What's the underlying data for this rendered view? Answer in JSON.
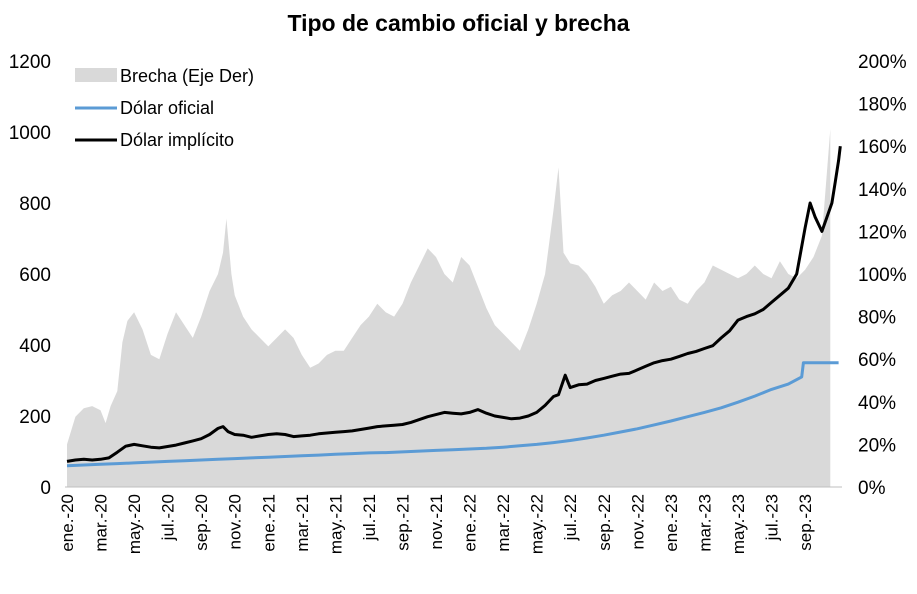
{
  "chart_data": {
    "type": "line",
    "title": "Tipo de cambio oficial y brecha",
    "ylim": [
      0,
      1200
    ],
    "y2lim": [
      0,
      200
    ],
    "yticks": [
      "0",
      "200",
      "400",
      "600",
      "800",
      "1000",
      "1200"
    ],
    "y2ticks": [
      "0%",
      "20%",
      "40%",
      "60%",
      "80%",
      "100%",
      "120%",
      "140%",
      "160%",
      "180%",
      "200%"
    ],
    "xtick_labels": [
      "ene.-20",
      "mar.-20",
      "may.-20",
      "jul.-20",
      "sep.-20",
      "nov.-20",
      "ene.-21",
      "mar.-21",
      "may.-21",
      "jul.-21",
      "sep.-21",
      "nov.-21",
      "ene.-22",
      "mar.-22",
      "may.-22",
      "jul.-22",
      "sep.-22",
      "nov.-22",
      "ene.-23",
      "mar.-23",
      "may.-23",
      "jul.-23",
      "sep.-23"
    ],
    "x_unit": "months since ene.-20",
    "legend": [
      "Brecha (Eje Der)",
      "Dólar oficial",
      "Dólar implícito"
    ],
    "colors": {
      "brecha": "#d9d9d9",
      "oficial": "#5b9bd5",
      "implicito": "#000000"
    },
    "series": [
      {
        "name": "Brecha (Eje Der)",
        "axis": "right",
        "points": [
          [
            0,
            20
          ],
          [
            0.5,
            33
          ],
          [
            1,
            37
          ],
          [
            1.5,
            38
          ],
          [
            2,
            36
          ],
          [
            2.3,
            30
          ],
          [
            2.6,
            38
          ],
          [
            3,
            45
          ],
          [
            3.3,
            68
          ],
          [
            3.6,
            78
          ],
          [
            4,
            82
          ],
          [
            4.5,
            74
          ],
          [
            5,
            62
          ],
          [
            5.5,
            60
          ],
          [
            6,
            72
          ],
          [
            6.5,
            82
          ],
          [
            7,
            76
          ],
          [
            7.5,
            70
          ],
          [
            8,
            80
          ],
          [
            8.5,
            92
          ],
          [
            9,
            100
          ],
          [
            9.3,
            110
          ],
          [
            9.5,
            126
          ],
          [
            9.8,
            100
          ],
          [
            10,
            90
          ],
          [
            10.5,
            80
          ],
          [
            11,
            74
          ],
          [
            11.5,
            70
          ],
          [
            12,
            66
          ],
          [
            12.5,
            70
          ],
          [
            13,
            74
          ],
          [
            13.5,
            70
          ],
          [
            14,
            62
          ],
          [
            14.5,
            56
          ],
          [
            15,
            58
          ],
          [
            15.5,
            62
          ],
          [
            16,
            64
          ],
          [
            16.5,
            64
          ],
          [
            17,
            70
          ],
          [
            17.5,
            76
          ],
          [
            18,
            80
          ],
          [
            18.5,
            86
          ],
          [
            19,
            82
          ],
          [
            19.5,
            80
          ],
          [
            20,
            86
          ],
          [
            20.5,
            96
          ],
          [
            21,
            104
          ],
          [
            21.5,
            112
          ],
          [
            22,
            108
          ],
          [
            22.5,
            100
          ],
          [
            23,
            96
          ],
          [
            23.5,
            108
          ],
          [
            24,
            104
          ],
          [
            24.5,
            94
          ],
          [
            25,
            84
          ],
          [
            25.5,
            76
          ],
          [
            26,
            72
          ],
          [
            26.5,
            68
          ],
          [
            27,
            64
          ],
          [
            27.5,
            74
          ],
          [
            28,
            86
          ],
          [
            28.5,
            100
          ],
          [
            29,
            130
          ],
          [
            29.3,
            150
          ],
          [
            29.6,
            110
          ],
          [
            30,
            105
          ],
          [
            30.5,
            104
          ],
          [
            31,
            100
          ],
          [
            31.5,
            94
          ],
          [
            32,
            86
          ],
          [
            32.5,
            90
          ],
          [
            33,
            92
          ],
          [
            33.5,
            96
          ],
          [
            34,
            92
          ],
          [
            34.5,
            88
          ],
          [
            35,
            96
          ],
          [
            35.5,
            92
          ],
          [
            36,
            94
          ],
          [
            36.5,
            88
          ],
          [
            37,
            86
          ],
          [
            37.5,
            92
          ],
          [
            38,
            96
          ],
          [
            38.5,
            104
          ],
          [
            39,
            102
          ],
          [
            39.5,
            100
          ],
          [
            40,
            98
          ],
          [
            40.5,
            100
          ],
          [
            41,
            104
          ],
          [
            41.5,
            100
          ],
          [
            42,
            98
          ],
          [
            42.5,
            106
          ],
          [
            43,
            100
          ],
          [
            43.5,
            98
          ],
          [
            44,
            102
          ],
          [
            44.5,
            108
          ],
          [
            45,
            118
          ],
          [
            45.5,
            168
          ]
        ]
      },
      {
        "name": "Dólar oficial",
        "axis": "left",
        "points": [
          [
            0,
            60
          ],
          [
            1,
            62
          ],
          [
            2,
            64
          ],
          [
            3,
            66
          ],
          [
            4,
            68
          ],
          [
            5,
            70
          ],
          [
            6,
            72
          ],
          [
            7,
            74
          ],
          [
            8,
            76
          ],
          [
            9,
            78
          ],
          [
            10,
            80
          ],
          [
            11,
            82
          ],
          [
            12,
            84
          ],
          [
            13,
            86
          ],
          [
            14,
            88
          ],
          [
            15,
            90
          ],
          [
            16,
            92
          ],
          [
            17,
            94
          ],
          [
            18,
            96
          ],
          [
            19,
            97
          ],
          [
            20,
            99
          ],
          [
            21,
            101
          ],
          [
            22,
            103
          ],
          [
            23,
            105
          ],
          [
            24,
            107
          ],
          [
            25,
            109
          ],
          [
            26,
            112
          ],
          [
            27,
            116
          ],
          [
            28,
            120
          ],
          [
            29,
            125
          ],
          [
            30,
            131
          ],
          [
            31,
            138
          ],
          [
            32,
            146
          ],
          [
            33,
            155
          ],
          [
            34,
            164
          ],
          [
            35,
            175
          ],
          [
            36,
            186
          ],
          [
            37,
            198
          ],
          [
            38,
            210
          ],
          [
            39,
            223
          ],
          [
            40,
            239
          ],
          [
            41,
            256
          ],
          [
            42,
            275
          ],
          [
            43,
            290
          ],
          [
            43.8,
            310
          ],
          [
            43.9,
            350
          ],
          [
            45,
            350
          ],
          [
            46,
            350
          ]
        ]
      },
      {
        "name": "Dólar implícito",
        "axis": "left",
        "points": [
          [
            0,
            72
          ],
          [
            0.5,
            76
          ],
          [
            1,
            78
          ],
          [
            1.5,
            76
          ],
          [
            2,
            78
          ],
          [
            2.5,
            82
          ],
          [
            3,
            98
          ],
          [
            3.5,
            115
          ],
          [
            4,
            120
          ],
          [
            4.5,
            116
          ],
          [
            5,
            112
          ],
          [
            5.5,
            110
          ],
          [
            6,
            114
          ],
          [
            6.5,
            118
          ],
          [
            7,
            124
          ],
          [
            7.5,
            130
          ],
          [
            8,
            136
          ],
          [
            8.5,
            148
          ],
          [
            9,
            165
          ],
          [
            9.3,
            170
          ],
          [
            9.6,
            156
          ],
          [
            10,
            148
          ],
          [
            10.5,
            146
          ],
          [
            11,
            140
          ],
          [
            11.5,
            144
          ],
          [
            12,
            148
          ],
          [
            12.5,
            150
          ],
          [
            13,
            148
          ],
          [
            13.5,
            142
          ],
          [
            14,
            144
          ],
          [
            14.5,
            146
          ],
          [
            15,
            150
          ],
          [
            15.5,
            152
          ],
          [
            16,
            154
          ],
          [
            16.5,
            156
          ],
          [
            17,
            158
          ],
          [
            17.5,
            162
          ],
          [
            18,
            166
          ],
          [
            18.5,
            170
          ],
          [
            19,
            172
          ],
          [
            19.5,
            174
          ],
          [
            20,
            176
          ],
          [
            20.5,
            182
          ],
          [
            21,
            190
          ],
          [
            21.5,
            198
          ],
          [
            22,
            204
          ],
          [
            22.5,
            210
          ],
          [
            23,
            208
          ],
          [
            23.5,
            206
          ],
          [
            24,
            210
          ],
          [
            24.5,
            218
          ],
          [
            25,
            208
          ],
          [
            25.5,
            200
          ],
          [
            26,
            196
          ],
          [
            26.5,
            192
          ],
          [
            27,
            194
          ],
          [
            27.5,
            200
          ],
          [
            28,
            210
          ],
          [
            28.5,
            230
          ],
          [
            29,
            255
          ],
          [
            29.3,
            260
          ],
          [
            29.7,
            315
          ],
          [
            30,
            280
          ],
          [
            30.5,
            288
          ],
          [
            31,
            290
          ],
          [
            31.5,
            300
          ],
          [
            32,
            306
          ],
          [
            32.5,
            312
          ],
          [
            33,
            318
          ],
          [
            33.5,
            320
          ],
          [
            34,
            330
          ],
          [
            34.5,
            340
          ],
          [
            35,
            350
          ],
          [
            35.5,
            356
          ],
          [
            36,
            360
          ],
          [
            36.5,
            368
          ],
          [
            37,
            376
          ],
          [
            37.5,
            382
          ],
          [
            38,
            390
          ],
          [
            38.5,
            398
          ],
          [
            39,
            420
          ],
          [
            39.5,
            440
          ],
          [
            40,
            470
          ],
          [
            40.5,
            480
          ],
          [
            41,
            488
          ],
          [
            41.5,
            500
          ],
          [
            42,
            520
          ],
          [
            42.5,
            540
          ],
          [
            43,
            560
          ],
          [
            43.5,
            600
          ],
          [
            44,
            730
          ],
          [
            44.3,
            800
          ],
          [
            44.6,
            760
          ],
          [
            45,
            720
          ],
          [
            45.3,
            760
          ],
          [
            45.6,
            800
          ],
          [
            45.8,
            860
          ],
          [
            46,
            920
          ],
          [
            46.1,
            960
          ]
        ]
      }
    ]
  }
}
